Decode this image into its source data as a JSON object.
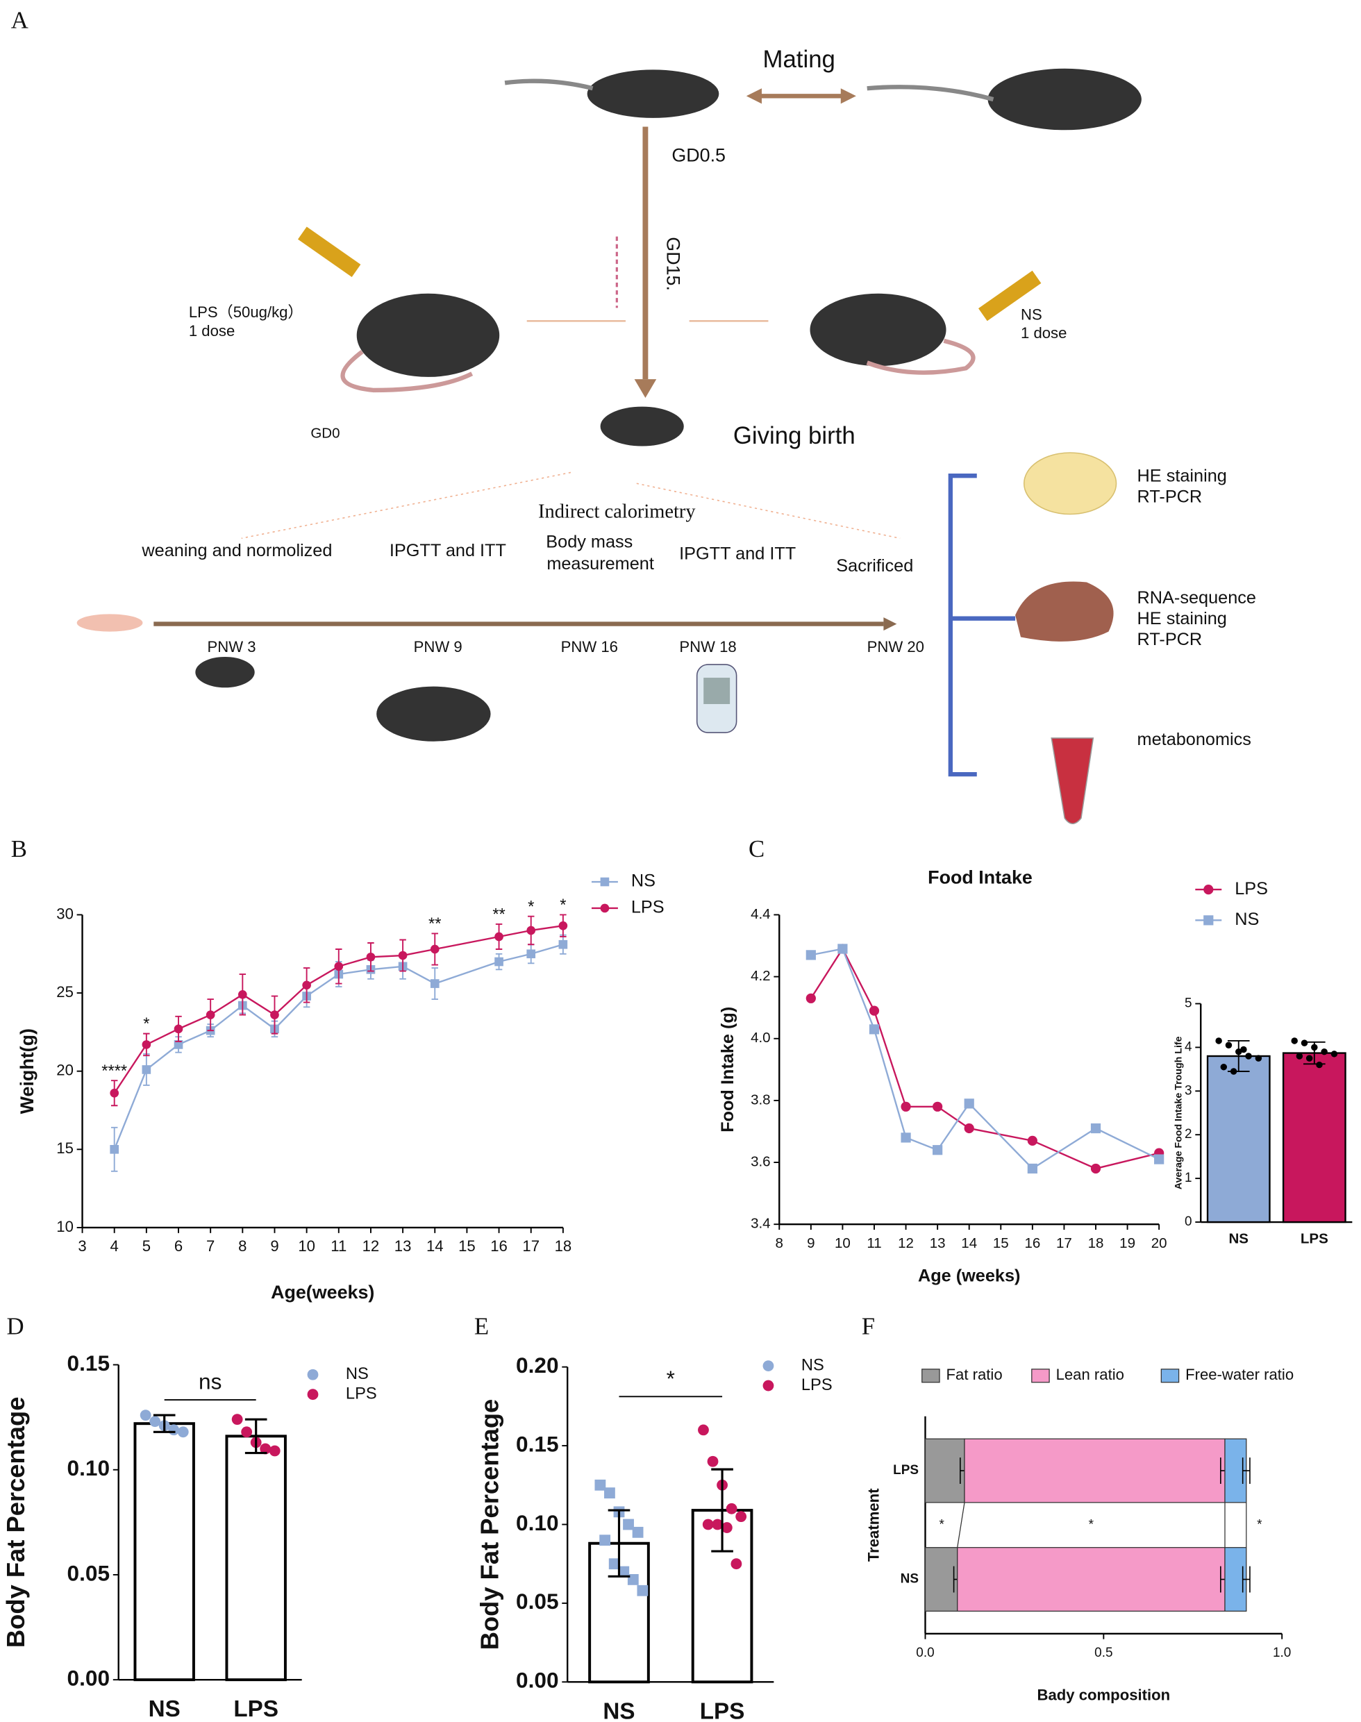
{
  "diagram": {
    "panel": "A",
    "mating": "Mating",
    "gd05": "GD0.5",
    "gd15": "GD15.",
    "lps_dose": "LPS（50ug/kg）",
    "lps_count": "1 dose",
    "ns_dose": "NS",
    "ns_count": "1 dose",
    "gd0": "GD0",
    "birth": "Giving birth",
    "calorimetry": "Indirect calorimetry",
    "timeline": [
      "weaning and normolized",
      "IPGTT and ITT",
      "Body mass",
      "measurement",
      "IPGTT and ITT",
      "Sacrificed"
    ],
    "weeks": [
      "PNW 3",
      "PNW 9",
      "PNW 16",
      "PNW 18",
      "PNW 20"
    ],
    "assays": [
      "HE staining",
      "RT-PCR",
      "RNA-sequence",
      "HE staining",
      "RT-PCR",
      "metabonomics"
    ]
  },
  "chart_data": [
    {
      "panel": "B",
      "type": "line",
      "xlabel": "Age(weeks)",
      "ylabel": "Weight(g)",
      "x": [
        4,
        5,
        6,
        7,
        8,
        9,
        10,
        11,
        12,
        13,
        14,
        16,
        17,
        18
      ],
      "xlim": [
        3,
        18
      ],
      "xticks": [
        3,
        4,
        5,
        6,
        7,
        8,
        9,
        10,
        11,
        12,
        13,
        14,
        15,
        16,
        17,
        18
      ],
      "ylim": [
        10,
        30
      ],
      "yticks": [
        10,
        15,
        20,
        25,
        30
      ],
      "series": [
        {
          "name": "NS",
          "color": "#8eaad6",
          "marker": "square",
          "values": [
            15.0,
            20.1,
            21.7,
            22.6,
            24.2,
            22.7,
            24.8,
            26.2,
            26.5,
            26.7,
            25.6,
            27.0,
            27.5,
            28.1
          ],
          "errors": [
            1.4,
            1.0,
            0.5,
            0.4,
            0.5,
            0.5,
            0.7,
            0.8,
            0.6,
            0.8,
            1.0,
            0.5,
            0.6,
            0.6
          ]
        },
        {
          "name": "LPS",
          "color": "#c8175d",
          "marker": "circle",
          "values": [
            18.6,
            21.7,
            22.7,
            23.6,
            24.9,
            23.6,
            25.5,
            26.7,
            27.3,
            27.4,
            27.8,
            28.6,
            29.0,
            29.3
          ],
          "errors": [
            0.8,
            0.7,
            0.8,
            1.0,
            1.3,
            1.2,
            1.1,
            1.1,
            0.9,
            1.0,
            1.0,
            0.8,
            0.9,
            0.7
          ]
        }
      ],
      "annotations": [
        {
          "x": 4,
          "text": "****"
        },
        {
          "x": 5,
          "text": "*"
        },
        {
          "x": 14,
          "text": "**"
        },
        {
          "x": 16,
          "text": "**"
        },
        {
          "x": 17,
          "text": "*"
        },
        {
          "x": 18,
          "text": "*"
        }
      ]
    },
    {
      "panel": "C",
      "type": "line",
      "title": "Food Intake",
      "xlabel": "Age (weeks)",
      "ylabel": "Food Intake (g)",
      "x": [
        9,
        10,
        11,
        12,
        13,
        14,
        16,
        18,
        20
      ],
      "xlim": [
        8,
        20
      ],
      "xticks": [
        8,
        9,
        10,
        11,
        12,
        13,
        14,
        15,
        16,
        17,
        18,
        19,
        20
      ],
      "ylim": [
        3.4,
        4.4
      ],
      "yticks": [
        3.4,
        3.6,
        3.8,
        {
          "value": 4,
          "label": "4.0"
        },
        4.2,
        4.4
      ],
      "series": [
        {
          "name": "LPS",
          "color": "#c8175d",
          "marker": "circle",
          "values": [
            4.13,
            4.29,
            4.09,
            3.78,
            3.78,
            3.71,
            3.67,
            3.58,
            3.63
          ]
        },
        {
          "name": "NS",
          "color": "#8eaad6",
          "marker": "square",
          "values": [
            4.27,
            4.29,
            4.03,
            3.68,
            3.64,
            3.79,
            3.58,
            3.71,
            3.61
          ]
        }
      ]
    },
    {
      "type": "bar",
      "ylabel": "Average Food Intake Trough Life",
      "categories": [
        "NS",
        "LPS"
      ],
      "values": [
        3.8,
        3.87
      ],
      "errors": [
        0.35,
        0.25
      ],
      "colors": [
        "#8eaad6",
        "#c8175d"
      ],
      "point_colors": [
        "#000000",
        "#000000"
      ],
      "markers": [
        "circle",
        "circle"
      ],
      "points": [
        [
          4.15,
          4.05,
          3.9,
          3.8,
          3.75,
          3.55,
          3.45,
          3.95
        ],
        [
          4.15,
          4.1,
          4.0,
          3.9,
          3.85,
          3.8,
          3.75,
          3.6
        ]
      ],
      "ylim": [
        0,
        5
      ],
      "yticks": [
        0,
        1,
        2,
        3,
        4,
        5
      ]
    },
    {
      "panel": "D",
      "type": "bar",
      "ylabel": "Body Fat Percentage",
      "categories": [
        "NS",
        "LPS"
      ],
      "values": [
        0.122,
        0.116
      ],
      "errors": [
        0.004,
        0.008
      ],
      "colors": [
        "#ffffff",
        "#ffffff"
      ],
      "point_colors": [
        "#8eaad6",
        "#c8175d"
      ],
      "markers": [
        "circle",
        "circle"
      ],
      "points": [
        [
          0.126,
          0.123,
          0.121,
          0.119,
          0.118
        ],
        [
          0.124,
          0.118,
          0.113,
          0.11,
          0.109
        ]
      ],
      "ylim": [
        0,
        0.15
      ],
      "yticks": [
        {
          "value": 0,
          "label": "0.00"
        },
        0.05,
        {
          "value": 0.1,
          "label": "0.10"
        },
        0.15
      ],
      "legend": [
        "NS",
        "LPS"
      ],
      "annotation": "ns"
    },
    {
      "panel": "E",
      "type": "bar",
      "ylabel": "Body Fat Percentage",
      "categories": [
        "NS",
        "LPS"
      ],
      "values": [
        0.088,
        0.109
      ],
      "errors": [
        0.021,
        0.026
      ],
      "colors": [
        "#ffffff",
        "#ffffff"
      ],
      "point_colors": [
        "#8eaad6",
        "#c8175d"
      ],
      "markers": [
        "square",
        "circle"
      ],
      "points": [
        [
          0.125,
          0.12,
          0.108,
          0.1,
          0.095,
          0.09,
          0.075,
          0.07,
          0.065,
          0.058
        ],
        [
          0.16,
          0.14,
          0.125,
          0.11,
          0.105,
          0.1,
          0.1,
          0.098,
          0.075
        ]
      ],
      "ylim": [
        0,
        0.2
      ],
      "yticks": [
        {
          "value": 0,
          "label": "0.00"
        },
        0.05,
        {
          "value": 0.1,
          "label": "0.10"
        },
        0.15,
        {
          "value": 0.2,
          "label": "0.20"
        }
      ],
      "legend": [
        "NS",
        "LPS"
      ],
      "annotation": "*"
    },
    {
      "panel": "F",
      "type": "stacked_barh",
      "xlabel": "Bady composition",
      "ylabel": "Treatment",
      "categories": [
        "NS",
        "LPS"
      ],
      "xlim": [
        0,
        1
      ],
      "xticks": [
        {
          "value": 0,
          "label": "0.0"
        },
        0.5,
        {
          "value": 1,
          "label": "1.0"
        }
      ],
      "series": [
        {
          "name": "Fat ratio",
          "color": "#999999",
          "values": [
            0.09,
            0.11
          ],
          "errors": [
            0.01,
            0.012
          ]
        },
        {
          "name": "Lean ratio",
          "color": "#f59ac8",
          "values": [
            0.75,
            0.73
          ],
          "errors": [
            0.012,
            0.012
          ]
        },
        {
          "name": "Free-water ratio",
          "color": "#7ab3ea",
          "values": [
            0.06,
            0.06
          ],
          "errors": [
            0.01,
            0.01
          ]
        }
      ],
      "annotations": [
        "*",
        "*",
        "*"
      ]
    }
  ]
}
